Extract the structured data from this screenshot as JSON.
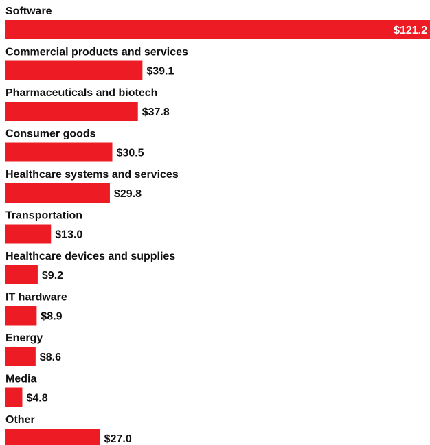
{
  "chart_data": {
    "type": "bar",
    "orientation": "horizontal",
    "categories": [
      "Software",
      "Commercial products and services",
      "Pharmaceuticals and biotech",
      "Consumer goods",
      "Healthcare systems and services",
      "Transportation",
      "Healthcare devices and supplies",
      "IT hardware",
      "Energy",
      "Media",
      "Other"
    ],
    "values": [
      121.2,
      39.1,
      37.8,
      30.5,
      29.8,
      13.0,
      9.2,
      8.9,
      8.6,
      4.8,
      27.0
    ],
    "data_labels": [
      "$121.2",
      "$39.1",
      "$37.8",
      "$30.5",
      "$29.8",
      "$13.0",
      "$9.2",
      "$8.9",
      "$8.6",
      "$4.8",
      "$27.0"
    ],
    "title": "",
    "xlabel": "",
    "ylabel": "",
    "xlim": [
      0,
      121.2
    ],
    "grid": false,
    "legend": "none",
    "colors": {
      "bar": "#ED1C24",
      "label_text": "#111111",
      "value_text_inside": "#ffffff",
      "value_text_outside": "#111111"
    }
  }
}
